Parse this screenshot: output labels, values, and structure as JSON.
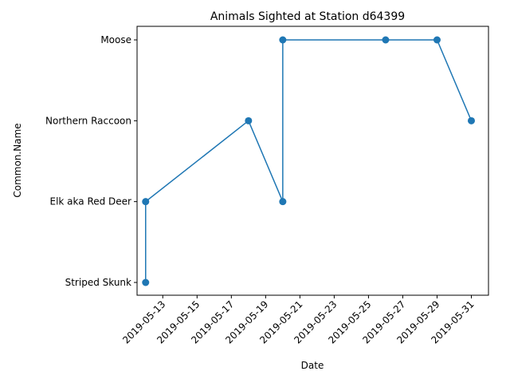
{
  "chart_data": {
    "type": "line",
    "title": "Animals Sighted at Station d64399",
    "xlabel": "Date",
    "ylabel": "Common.Name",
    "y_categories": [
      "Striped Skunk",
      "Elk aka Red Deer",
      "Northern Raccoon",
      "Moose"
    ],
    "x_ticks": [
      "2019-05-13",
      "2019-05-15",
      "2019-05-17",
      "2019-05-19",
      "2019-05-21",
      "2019-05-23",
      "2019-05-25",
      "2019-05-27",
      "2019-05-29",
      "2019-05-31"
    ],
    "xlim": [
      "2019-05-11T12:00",
      "2019-06-01T00:00"
    ],
    "grid": false,
    "series": [
      {
        "color": "#1f77b4",
        "marker": "circle",
        "points": [
          {
            "x": "2019-05-12",
            "y": "Striped Skunk"
          },
          {
            "x": "2019-05-12",
            "y": "Elk aka Red Deer"
          },
          {
            "x": "2019-05-18",
            "y": "Northern Raccoon"
          },
          {
            "x": "2019-05-20",
            "y": "Elk aka Red Deer"
          },
          {
            "x": "2019-05-20",
            "y": "Moose"
          },
          {
            "x": "2019-05-26",
            "y": "Moose"
          },
          {
            "x": "2019-05-29",
            "y": "Moose"
          },
          {
            "x": "2019-05-31",
            "y": "Northern Raccoon"
          }
        ]
      }
    ]
  }
}
